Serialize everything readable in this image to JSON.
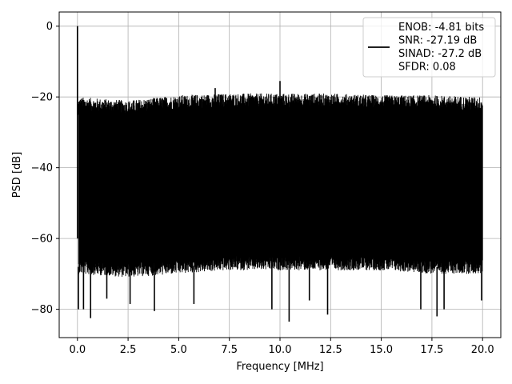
{
  "chart_data": {
    "type": "line",
    "title": "",
    "xlabel": "Frequency [MHz]",
    "ylabel": "PSD [dB]",
    "xlim": [
      -0.9,
      20.9
    ],
    "ylim": [
      -88,
      4
    ],
    "xticks": [
      0.0,
      2.5,
      5.0,
      7.5,
      10.0,
      12.5,
      15.0,
      17.5,
      20.0
    ],
    "xtick_labels": [
      "0.0",
      "2.5",
      "5.0",
      "7.5",
      "10.0",
      "12.5",
      "15.0",
      "17.5",
      "20.0"
    ],
    "yticks": [
      0,
      -20,
      -40,
      -60,
      -80
    ],
    "ytick_labels": [
      "0",
      "−20",
      "−40",
      "−60",
      "−80"
    ],
    "grid": true,
    "legend_position": "top-right",
    "legend_lines": [
      "ENOB: -4.81 bits",
      "SNR: -27.19 dB",
      "SINAD: -27.2 dB",
      "SFDR: 0.08"
    ],
    "series": [
      {
        "color": "#000000",
        "envelope_points": [
          {
            "x": 0.0,
            "upper": -22,
            "lower": -70
          },
          {
            "x": 2.5,
            "upper": -23,
            "lower": -71
          },
          {
            "x": 5.0,
            "upper": -21.5,
            "lower": -70
          },
          {
            "x": 7.5,
            "upper": -21,
            "lower": -69
          },
          {
            "x": 10.0,
            "upper": -21,
            "lower": -69
          },
          {
            "x": 12.5,
            "upper": -21,
            "lower": -69
          },
          {
            "x": 15.0,
            "upper": -21.5,
            "lower": -69
          },
          {
            "x": 17.5,
            "upper": -21.5,
            "lower": -70
          },
          {
            "x": 20.0,
            "upper": -22,
            "lower": -70
          }
        ],
        "peaks": [
          {
            "x": 0.0,
            "y": 0
          },
          {
            "x": 0.05,
            "y": -22
          },
          {
            "x": 6.8,
            "y": -17.5
          },
          {
            "x": 10.0,
            "y": -15.5
          }
        ],
        "dips": [
          {
            "x": 0.05,
            "y": -80
          },
          {
            "x": 0.3,
            "y": -80
          },
          {
            "x": 0.65,
            "y": -82.5
          },
          {
            "x": 1.45,
            "y": -77
          },
          {
            "x": 2.6,
            "y": -78.5
          },
          {
            "x": 3.8,
            "y": -80.5
          },
          {
            "x": 5.75,
            "y": -78.5
          },
          {
            "x": 9.6,
            "y": -80
          },
          {
            "x": 10.45,
            "y": -83.5
          },
          {
            "x": 11.45,
            "y": -77.5
          },
          {
            "x": 12.35,
            "y": -81.5
          },
          {
            "x": 16.95,
            "y": -80
          },
          {
            "x": 17.75,
            "y": -82
          },
          {
            "x": 18.1,
            "y": -80
          },
          {
            "x": 19.95,
            "y": -77.5
          }
        ]
      }
    ]
  }
}
